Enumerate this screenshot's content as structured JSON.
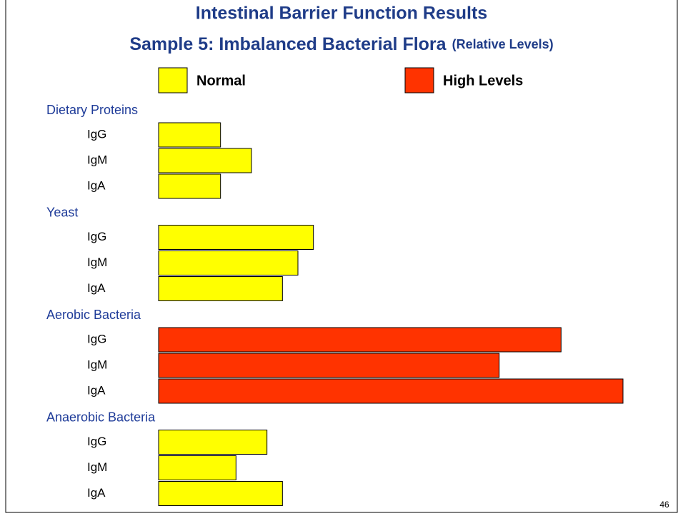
{
  "chart_data": {
    "type": "bar",
    "orientation": "horizontal",
    "title": "Intestinal Barrier Function Results",
    "subtitle": "Sample 5: Imbalanced Bacterial Flora",
    "subtitle_note": "(Relative Levels)",
    "legend": [
      {
        "name": "Normal",
        "color": "#ffff00"
      },
      {
        "name": "High Levels",
        "color": "#ff3300"
      }
    ],
    "xlim": [
      0,
      30
    ],
    "groups": [
      {
        "name": "Dietary Proteins",
        "categories": [
          "IgG",
          "IgM",
          "IgA"
        ],
        "values": [
          4,
          6,
          4
        ],
        "color": "#ffff00"
      },
      {
        "name": "Yeast",
        "categories": [
          "IgG",
          "IgM",
          "IgA"
        ],
        "values": [
          10,
          9,
          8
        ],
        "color": "#ffff00"
      },
      {
        "name": "Aerobic Bacteria",
        "categories": [
          "IgG",
          "IgM",
          "IgA"
        ],
        "values": [
          26,
          22,
          30
        ],
        "color": "#ff3300"
      },
      {
        "name": "Anaerobic Bacteria",
        "categories": [
          "IgG",
          "IgM",
          "IgA"
        ],
        "values": [
          7,
          5,
          8
        ],
        "color": "#ffff00"
      }
    ],
    "page_number": "46"
  }
}
